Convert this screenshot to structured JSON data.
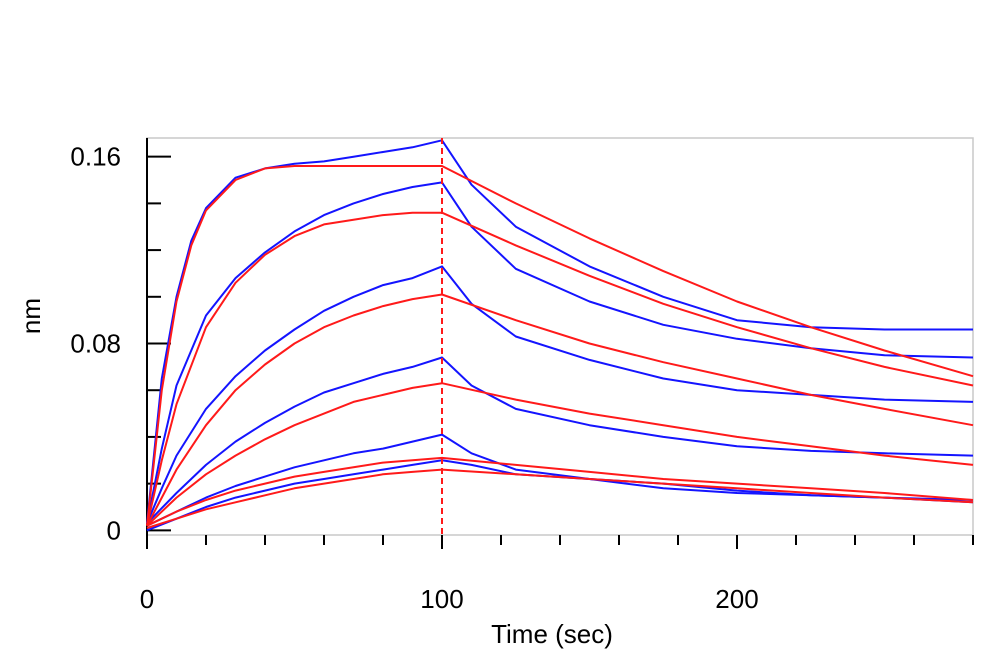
{
  "chart_data": {
    "type": "line",
    "title": "",
    "xlabel": "Time (sec)",
    "ylabel": "nm",
    "xlim": [
      0,
      280
    ],
    "ylim": [
      -0.002,
      0.168
    ],
    "xticks": [
      0,
      100,
      200
    ],
    "yticks": [
      0,
      0.08,
      0.16
    ],
    "ytick_labels": [
      "0",
      "0.08",
      "0.16"
    ],
    "xtick_labels": [
      "0",
      "100",
      "200"
    ],
    "minor_xtick_step": 20,
    "minor_ytick_step": 0.02,
    "vertical_marker_x": 100,
    "grid": false,
    "colors": {
      "measured": "#1414ff",
      "fit": "#ff1a1a",
      "frame": "#c8c8c8",
      "axis": "#000000"
    },
    "series": [
      {
        "x": [
          0,
          5,
          10,
          15,
          20,
          30,
          40,
          50,
          60,
          70,
          80,
          90,
          100,
          110,
          125,
          150,
          175,
          200,
          225,
          250,
          280
        ],
        "values": [
          0.003,
          0.065,
          0.1,
          0.124,
          0.138,
          0.151,
          0.155,
          0.157,
          0.158,
          0.16,
          0.162,
          0.164,
          0.167,
          0.148,
          0.13,
          0.113,
          0.1,
          0.09,
          0.087,
          0.086,
          0.086
        ]
      },
      {
        "x": [
          0,
          5,
          10,
          20,
          30,
          40,
          50,
          60,
          70,
          80,
          90,
          100,
          110,
          125,
          150,
          175,
          200,
          225,
          250,
          280
        ],
        "values": [
          0.003,
          0.035,
          0.062,
          0.092,
          0.108,
          0.119,
          0.128,
          0.135,
          0.14,
          0.144,
          0.147,
          0.149,
          0.13,
          0.112,
          0.098,
          0.088,
          0.082,
          0.078,
          0.075,
          0.074
        ]
      },
      {
        "x": [
          0,
          5,
          10,
          20,
          30,
          40,
          50,
          60,
          70,
          80,
          90,
          100,
          110,
          125,
          150,
          175,
          200,
          225,
          250,
          280
        ],
        "values": [
          0.003,
          0.018,
          0.032,
          0.052,
          0.066,
          0.077,
          0.086,
          0.094,
          0.1,
          0.105,
          0.108,
          0.113,
          0.097,
          0.083,
          0.073,
          0.065,
          0.06,
          0.058,
          0.056,
          0.055
        ]
      },
      {
        "x": [
          0,
          10,
          20,
          30,
          40,
          50,
          60,
          70,
          80,
          90,
          100,
          110,
          125,
          150,
          175,
          200,
          225,
          250,
          280
        ],
        "values": [
          0.003,
          0.016,
          0.028,
          0.038,
          0.046,
          0.053,
          0.059,
          0.063,
          0.067,
          0.07,
          0.074,
          0.062,
          0.052,
          0.045,
          0.04,
          0.036,
          0.034,
          0.033,
          0.032
        ]
      },
      {
        "x": [
          0,
          10,
          20,
          30,
          40,
          50,
          60,
          70,
          80,
          90,
          100,
          110,
          125,
          150,
          175,
          200,
          225,
          250,
          280
        ],
        "values": [
          0.002,
          0.008,
          0.014,
          0.019,
          0.023,
          0.027,
          0.03,
          0.033,
          0.035,
          0.038,
          0.041,
          0.033,
          0.026,
          0.022,
          0.018,
          0.016,
          0.015,
          0.014,
          0.013
        ]
      },
      {
        "x": [
          0,
          10,
          20,
          30,
          40,
          50,
          60,
          70,
          80,
          90,
          100,
          110,
          125,
          150,
          175,
          200,
          225,
          250,
          280
        ],
        "values": [
          0.0,
          0.005,
          0.01,
          0.014,
          0.017,
          0.02,
          0.022,
          0.024,
          0.026,
          0.028,
          0.03,
          0.028,
          0.024,
          0.022,
          0.02,
          0.017,
          0.015,
          0.014,
          0.012
        ]
      },
      {
        "fit": true,
        "x": [
          0,
          5,
          10,
          15,
          20,
          30,
          40,
          50,
          60,
          70,
          80,
          90,
          100,
          125,
          150,
          175,
          200,
          225,
          250,
          280
        ],
        "values": [
          0.002,
          0.06,
          0.098,
          0.122,
          0.137,
          0.15,
          0.155,
          0.156,
          0.156,
          0.156,
          0.156,
          0.156,
          0.156,
          0.14,
          0.125,
          0.111,
          0.098,
          0.087,
          0.077,
          0.066
        ]
      },
      {
        "fit": true,
        "x": [
          0,
          5,
          10,
          20,
          30,
          40,
          50,
          60,
          70,
          80,
          90,
          100,
          125,
          150,
          175,
          200,
          225,
          250,
          280
        ],
        "values": [
          0.002,
          0.03,
          0.054,
          0.087,
          0.106,
          0.118,
          0.126,
          0.131,
          0.133,
          0.135,
          0.136,
          0.136,
          0.122,
          0.109,
          0.097,
          0.087,
          0.078,
          0.07,
          0.062
        ]
      },
      {
        "fit": true,
        "x": [
          0,
          5,
          10,
          20,
          30,
          40,
          50,
          60,
          70,
          80,
          90,
          100,
          125,
          150,
          175,
          200,
          225,
          250,
          280
        ],
        "values": [
          0.002,
          0.014,
          0.026,
          0.045,
          0.06,
          0.071,
          0.08,
          0.087,
          0.092,
          0.096,
          0.099,
          0.101,
          0.09,
          0.08,
          0.072,
          0.065,
          0.058,
          0.052,
          0.045
        ]
      },
      {
        "fit": true,
        "x": [
          0,
          10,
          20,
          30,
          40,
          50,
          60,
          70,
          80,
          90,
          100,
          125,
          150,
          175,
          200,
          225,
          250,
          280
        ],
        "values": [
          0.002,
          0.014,
          0.024,
          0.032,
          0.039,
          0.045,
          0.05,
          0.055,
          0.058,
          0.061,
          0.063,
          0.056,
          0.05,
          0.045,
          0.04,
          0.036,
          0.032,
          0.028
        ]
      },
      {
        "fit": true,
        "x": [
          0,
          10,
          20,
          30,
          40,
          50,
          60,
          70,
          80,
          90,
          100,
          125,
          150,
          175,
          200,
          225,
          250,
          280
        ],
        "values": [
          0.002,
          0.008,
          0.013,
          0.017,
          0.02,
          0.023,
          0.025,
          0.027,
          0.029,
          0.03,
          0.031,
          0.028,
          0.025,
          0.022,
          0.02,
          0.018,
          0.016,
          0.013
        ]
      },
      {
        "fit": true,
        "x": [
          0,
          10,
          20,
          30,
          40,
          50,
          60,
          70,
          80,
          90,
          100,
          125,
          150,
          175,
          200,
          225,
          250,
          280
        ],
        "values": [
          0.001,
          0.005,
          0.009,
          0.012,
          0.015,
          0.018,
          0.02,
          0.022,
          0.024,
          0.025,
          0.026,
          0.024,
          0.022,
          0.02,
          0.018,
          0.016,
          0.014,
          0.012
        ]
      }
    ]
  }
}
